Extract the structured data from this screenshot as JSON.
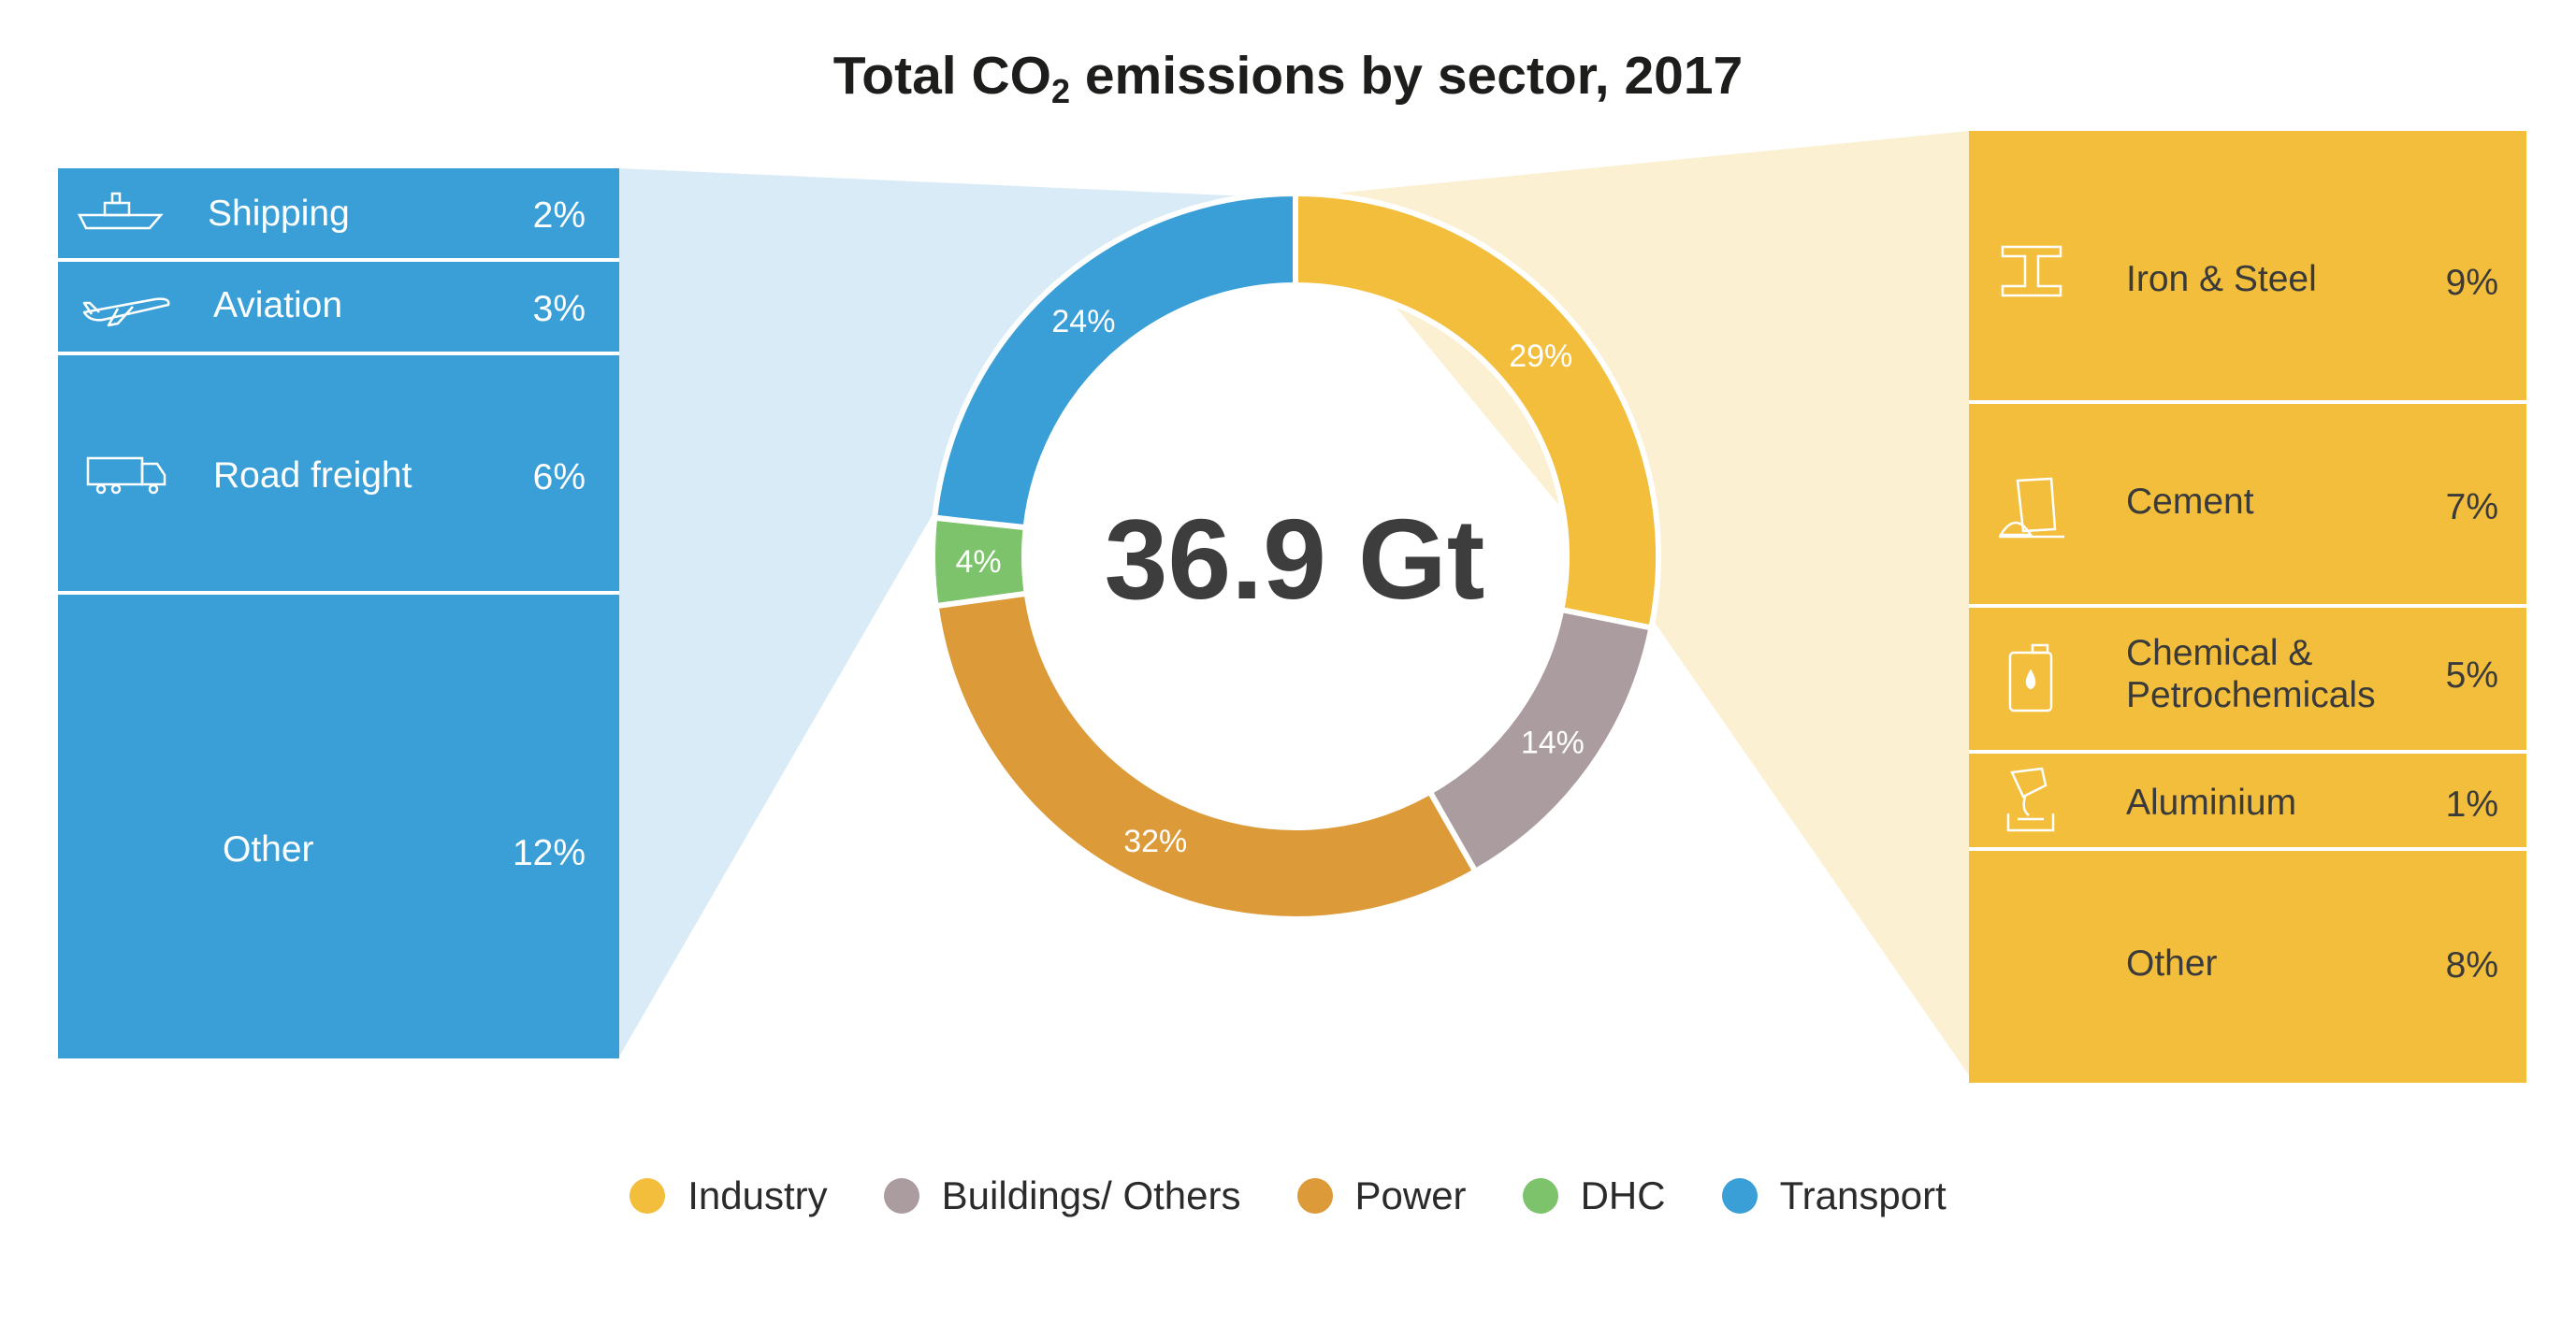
{
  "title_main": "Total CO",
  "title_sub": "2",
  "title_rest": " emissions by sector, 2017",
  "center_total": "36.9 Gt",
  "colors": {
    "industry": "#f2be3b",
    "buildings": "#ab9d9f",
    "power": "#dd9a39",
    "dhc": "#7cc36c",
    "transport": "#3a9fd6"
  },
  "chart_data": {
    "type": "pie",
    "title": "Total CO2 emissions by sector, 2017",
    "total": "36.9 Gt",
    "slices": [
      {
        "name": "Industry",
        "value": 29,
        "label": "29%"
      },
      {
        "name": "Buildings/ Others",
        "value": 14,
        "label": "14%"
      },
      {
        "name": "Power",
        "value": 32,
        "label": "32%"
      },
      {
        "name": "DHC",
        "value": 4,
        "label": "4%"
      },
      {
        "name": "Transport",
        "value": 24,
        "label": "24%"
      }
    ],
    "transport_breakdown": [
      {
        "name": "Shipping",
        "value": 2,
        "label": "2%"
      },
      {
        "name": "Aviation",
        "value": 3,
        "label": "3%"
      },
      {
        "name": "Road freight",
        "value": 6,
        "label": "6%"
      },
      {
        "name": "Other",
        "value": 12,
        "label": "12%"
      }
    ],
    "industry_breakdown": [
      {
        "name": "Iron & Steel",
        "value": 9,
        "label": "9%"
      },
      {
        "name": "Cement",
        "value": 7,
        "label": "7%"
      },
      {
        "name": "Chemical & Petrochemicals",
        "value": 5,
        "label": "5%"
      },
      {
        "name": "Aluminium",
        "value": 1,
        "label": "1%"
      },
      {
        "name": "Other",
        "value": 8,
        "label": "8%"
      }
    ],
    "legend_placement": "bottom"
  },
  "transport_panel": [
    {
      "label": "Shipping",
      "pct": "2%",
      "icon": "ship-icon"
    },
    {
      "label": "Aviation",
      "pct": "3%",
      "icon": "airplane-icon"
    },
    {
      "label": "Road freight",
      "pct": "6%",
      "icon": "truck-icon"
    },
    {
      "label": "Other",
      "pct": "12%",
      "icon": ""
    }
  ],
  "industry_panel": [
    {
      "label_line1": "Iron & Steel",
      "label_line2": "",
      "pct": "9%",
      "icon": "steel-beam-icon"
    },
    {
      "label_line1": "Cement",
      "label_line2": "",
      "pct": "7%",
      "icon": "cement-bag-icon"
    },
    {
      "label_line1": "Chemical &",
      "label_line2": "Petrochemicals",
      "pct": "5%",
      "icon": "chemical-container-icon"
    },
    {
      "label_line1": "Aluminium",
      "label_line2": "",
      "pct": "1%",
      "icon": "pouring-ladle-icon"
    },
    {
      "label_line1": "Other",
      "label_line2": "",
      "pct": "8%",
      "icon": ""
    }
  ],
  "legend": [
    {
      "label": "Industry",
      "color": "#f2be3b"
    },
    {
      "label": "Buildings/ Others",
      "color": "#ab9d9f"
    },
    {
      "label": "Power",
      "color": "#dd9a39"
    },
    {
      "label": "DHC",
      "color": "#7cc36c"
    },
    {
      "label": "Transport",
      "color": "#3a9fd6"
    }
  ]
}
